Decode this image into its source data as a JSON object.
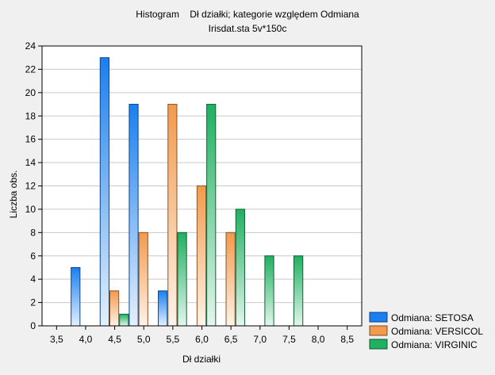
{
  "chart_data": {
    "type": "bar",
    "title": "Histogram    Dł działki; kategorie względem Odmiana",
    "subtitle": "Irisdat.sta 5v*150c",
    "xlabel": "Dł działki",
    "ylabel": "Liczba obs.",
    "xlim": [
      3.25,
      8.75
    ],
    "ylim": [
      0,
      24
    ],
    "y_ticks": [
      0,
      2,
      4,
      6,
      8,
      10,
      12,
      14,
      16,
      18,
      20,
      22,
      24
    ],
    "x_ticks": [
      3.5,
      4.0,
      4.5,
      5.0,
      5.5,
      6.0,
      6.5,
      7.0,
      7.5,
      8.0,
      8.5
    ],
    "x_tick_labels": [
      "3,5",
      "4,0",
      "4,5",
      "5,0",
      "5,5",
      "6,0",
      "6,5",
      "7,0",
      "7,5",
      "8,0",
      "8,5"
    ],
    "grid": "horizontal",
    "legend_position": "bottom-right",
    "categories": [
      "4,0",
      "4,5",
      "5,0",
      "5,5",
      "6,0",
      "6,5",
      "7,0",
      "7,5",
      "8,0"
    ],
    "x": [
      4.0,
      4.5,
      5.0,
      5.5,
      6.0,
      6.5,
      7.0,
      7.5,
      8.0
    ],
    "series": [
      {
        "name": "Odmiana:  SETOSA",
        "color": "#1a7ff0",
        "values": [
          5,
          23,
          19,
          3,
          0,
          0,
          0,
          0,
          0
        ]
      },
      {
        "name": "Odmiana:  VERSICOL",
        "color": "#f39a4c",
        "values": [
          0,
          3,
          8,
          19,
          12,
          8,
          0,
          0,
          0
        ]
      },
      {
        "name": "Odmiana:  VIRGINIC",
        "color": "#1fb060",
        "values": [
          0,
          1,
          0,
          8,
          19,
          10,
          6,
          6,
          0
        ]
      }
    ]
  }
}
